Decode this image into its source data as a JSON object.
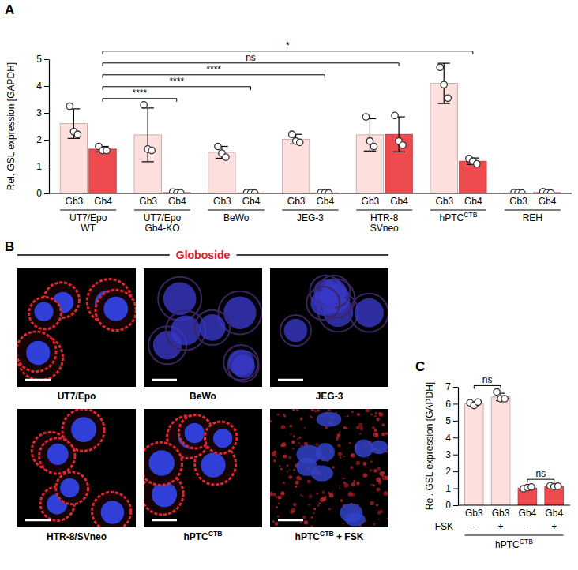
{
  "chart_data": [
    {
      "type": "bar",
      "panel": "A",
      "y_label": "Rel. GSL expression [GAPDH]",
      "categories": [
        "UT7/Epo\nWT",
        "UT7/Epo\nGb4-KO",
        "BeWo",
        "JEG-3",
        "HTR-8\nSVneo",
        {
          "text": "hPTC",
          "sup": "CTB"
        },
        "REH"
      ],
      "series": [
        {
          "name": "Gb3",
          "color": "#fde0de",
          "values": [
            2.6,
            2.18,
            1.53,
            2.02,
            2.18,
            4.1,
            0.02
          ],
          "errors": [
            0.55,
            1.0,
            0.22,
            0.18,
            0.6,
            0.75,
            0.02
          ],
          "points": [
            [
              3.25,
              2.3,
              2.2
            ],
            [
              3.3,
              1.65,
              1.6
            ],
            [
              1.75,
              1.5,
              1.35
            ],
            [
              2.2,
              1.95,
              1.9
            ],
            [
              2.85,
              1.95,
              1.75
            ],
            [
              4.7,
              4.05,
              3.55
            ],
            [
              0.03,
              0.02,
              0.01
            ]
          ]
        },
        {
          "name": "Gb4",
          "color": "#ee4b4e",
          "values": [
            1.65,
            0.03,
            0.02,
            0.02,
            2.2,
            1.2,
            0.03
          ],
          "errors": [
            0.1,
            0.03,
            0.02,
            0.02,
            0.65,
            0.12,
            0.03
          ],
          "points": [
            [
              1.75,
              1.6,
              1.6
            ],
            [
              0.05,
              0.02,
              0.02
            ],
            [
              0.03,
              0.02,
              0.01
            ],
            [
              0.03,
              0.02,
              0.01
            ],
            [
              2.9,
              1.95,
              1.8
            ],
            [
              1.3,
              1.2,
              1.1
            ],
            [
              0.06,
              0.02,
              0.01
            ]
          ]
        }
      ],
      "ylim": [
        0,
        5
      ],
      "yticks": [
        0,
        1,
        2,
        3,
        4,
        5
      ],
      "comparisons": [
        {
          "series": "Gb4",
          "from": 0,
          "to": 1,
          "label": "****"
        },
        {
          "series": "Gb4",
          "from": 0,
          "to": 2,
          "label": "****"
        },
        {
          "series": "Gb4",
          "from": 0,
          "to": 3,
          "label": "****"
        },
        {
          "series": "Gb4",
          "from": 0,
          "to": 4,
          "label": "ns"
        },
        {
          "series": "Gb4",
          "from": 0,
          "to": 5,
          "label": "*"
        }
      ]
    },
    {
      "type": "bar",
      "panel": "C",
      "y_label": "Rel. GSL expression [GAPDH]",
      "categories": [
        "Gb3",
        "Gb3",
        "Gb4",
        "Gb4"
      ],
      "treatment": {
        "label": "FSK",
        "values": [
          "-",
          "+",
          "-",
          "+"
        ]
      },
      "group_label": {
        "text": "hPTC",
        "sup": "CTB"
      },
      "values": [
        6.0,
        6.4,
        1.02,
        1.12
      ],
      "errors": [
        0.12,
        0.22,
        0.06,
        0.04
      ],
      "points": [
        [
          6.05,
          5.9,
          6.1
        ],
        [
          6.7,
          6.3,
          6.3
        ],
        [
          0.98,
          1.05,
          1.08
        ],
        [
          1.15,
          1.1,
          1.13
        ]
      ],
      "colors": [
        "#fde0de",
        "#fde0de",
        "#ee4b4e",
        "#ee4b4e"
      ],
      "ylim": [
        0,
        7
      ],
      "yticks": [
        0,
        1,
        2,
        3,
        4,
        5,
        6,
        7
      ],
      "comparisons": [
        {
          "from": 0,
          "to": 1,
          "label": "ns"
        },
        {
          "from": 2,
          "to": 3,
          "label": "ns"
        }
      ]
    }
  ],
  "image_panel": {
    "panel": "B",
    "title": "Globoside",
    "labels": [
      "UT7/Epo",
      "BeWo",
      "JEG-3",
      "HTR-8/SVneo",
      {
        "text": "hPTC",
        "sup": "CTB"
      },
      {
        "text": "hPTC",
        "sup": "CTB",
        "after": " + FSK"
      }
    ]
  }
}
